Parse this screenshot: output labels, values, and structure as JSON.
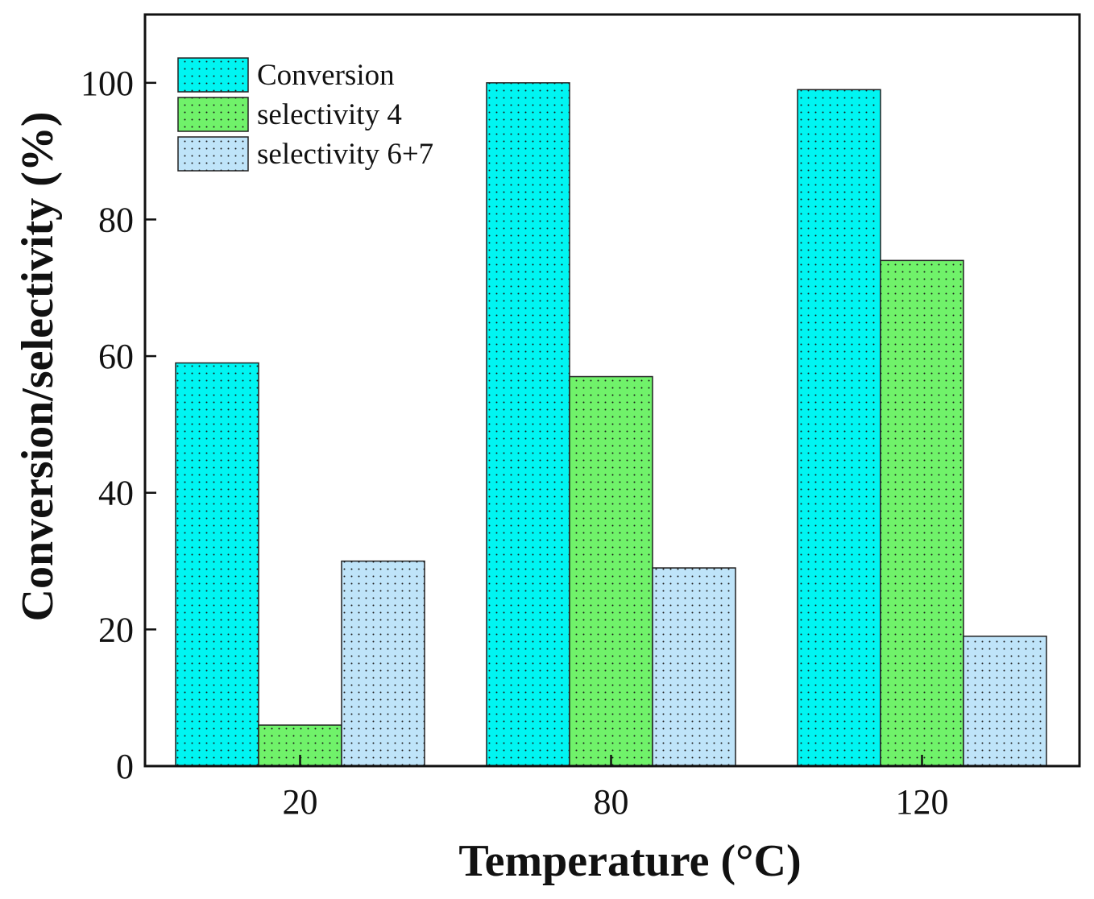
{
  "chart_data": {
    "type": "bar",
    "categories": [
      "20",
      "80",
      "120"
    ],
    "series": [
      {
        "name": "Conversion",
        "values": [
          59,
          100,
          99
        ],
        "color": "#00f5f2"
      },
      {
        "name": "selectivity 4",
        "values": [
          6,
          57,
          74
        ],
        "color": "#70f26a"
      },
      {
        "name": "selectivity 6+7",
        "values": [
          30,
          29,
          19
        ],
        "color": "#bfe4f9"
      }
    ],
    "xlabel": "Temperature (°C)",
    "ylabel": "Conversion/selectivity (%)",
    "ylim": [
      0,
      110
    ],
    "yticks": [
      "0",
      "20",
      "40",
      "60",
      "80",
      "100"
    ],
    "legend_position": "top-left",
    "grid": false
  }
}
